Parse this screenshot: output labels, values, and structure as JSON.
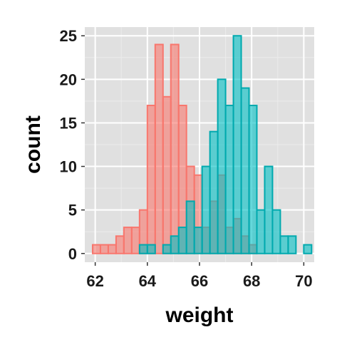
{
  "chart_data": {
    "type": "bar",
    "subtype": "overlaid-histogram",
    "xlabel": "weight",
    "ylabel": "count",
    "xlim": [
      61.6,
      70.4
    ],
    "ylim": [
      -1,
      26
    ],
    "x_ticks": [
      62,
      64,
      66,
      68,
      70
    ],
    "y_ticks": [
      0,
      5,
      10,
      15,
      20,
      25
    ],
    "bin_width": 0.3,
    "grid": true,
    "legend": "none",
    "colors": {
      "panel_background": "#e0e0e0",
      "grid_major": "#ffffff",
      "grid_minor": "#ececec"
    },
    "series": [
      {
        "fill": "#f8766d",
        "stroke": "#f8766d",
        "fill_opacity": 0.6,
        "bins": [
          {
            "x": 61.75,
            "count": 0
          },
          {
            "x": 62.05,
            "count": 1
          },
          {
            "x": 62.35,
            "count": 1
          },
          {
            "x": 62.65,
            "count": 1
          },
          {
            "x": 62.95,
            "count": 2
          },
          {
            "x": 63.25,
            "count": 3
          },
          {
            "x": 63.55,
            "count": 3
          },
          {
            "x": 63.85,
            "count": 5
          },
          {
            "x": 64.15,
            "count": 17
          },
          {
            "x": 64.45,
            "count": 24
          },
          {
            "x": 64.75,
            "count": 18
          },
          {
            "x": 65.05,
            "count": 24
          },
          {
            "x": 65.35,
            "count": 17
          },
          {
            "x": 65.65,
            "count": 10
          },
          {
            "x": 65.95,
            "count": 9
          },
          {
            "x": 66.25,
            "count": 3
          },
          {
            "x": 66.55,
            "count": 6
          },
          {
            "x": 66.85,
            "count": 9
          },
          {
            "x": 67.15,
            "count": 3
          },
          {
            "x": 67.45,
            "count": 4
          },
          {
            "x": 67.75,
            "count": 2
          },
          {
            "x": 68.05,
            "count": 1
          },
          {
            "x": 68.35,
            "count": 0
          }
        ]
      },
      {
        "fill": "#00bfc4",
        "stroke": "#00a9ae",
        "fill_opacity": 0.6,
        "bins": [
          {
            "x": 63.85,
            "count": 1
          },
          {
            "x": 64.15,
            "count": 1
          },
          {
            "x": 64.45,
            "count": 0
          },
          {
            "x": 64.75,
            "count": 1
          },
          {
            "x": 65.05,
            "count": 2
          },
          {
            "x": 65.35,
            "count": 3
          },
          {
            "x": 65.65,
            "count": 6
          },
          {
            "x": 65.95,
            "count": 3
          },
          {
            "x": 66.25,
            "count": 10
          },
          {
            "x": 66.55,
            "count": 14
          },
          {
            "x": 66.85,
            "count": 20
          },
          {
            "x": 67.15,
            "count": 17
          },
          {
            "x": 67.45,
            "count": 25
          },
          {
            "x": 67.75,
            "count": 19
          },
          {
            "x": 68.05,
            "count": 17
          },
          {
            "x": 68.35,
            "count": 5
          },
          {
            "x": 68.65,
            "count": 10
          },
          {
            "x": 68.95,
            "count": 5
          },
          {
            "x": 69.25,
            "count": 2
          },
          {
            "x": 69.55,
            "count": 2
          },
          {
            "x": 69.85,
            "count": 0
          },
          {
            "x": 70.15,
            "count": 1
          }
        ]
      }
    ]
  }
}
